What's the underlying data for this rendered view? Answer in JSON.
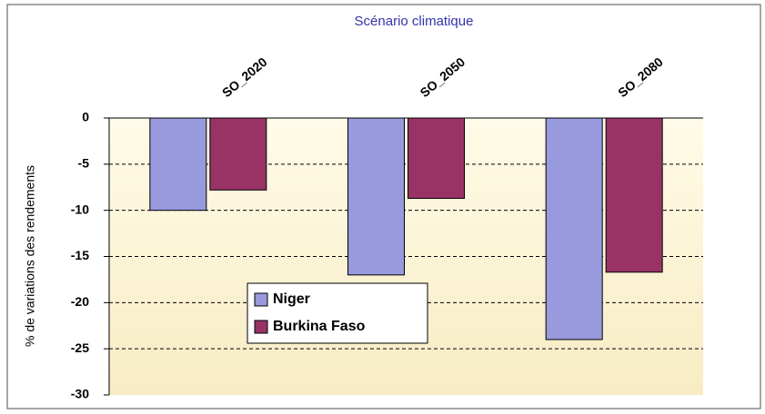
{
  "chart_data": {
    "type": "bar",
    "title": "Scénario climatique",
    "y_label": "% de variations des rendements",
    "categories": [
      "SO_2020",
      "SO_2050",
      "SO_2080"
    ],
    "series": [
      {
        "name": "Niger",
        "color": "#9999dd",
        "values": [
          -10,
          -17,
          -24
        ]
      },
      {
        "name": "Burkina Faso",
        "color": "#993366",
        "values": [
          -7.8,
          -8.7,
          -16.7
        ]
      }
    ],
    "ylim": [
      -30,
      0
    ],
    "yticks": [
      0,
      -5,
      -10,
      -15,
      -20,
      -25,
      -30
    ],
    "grid": true
  }
}
